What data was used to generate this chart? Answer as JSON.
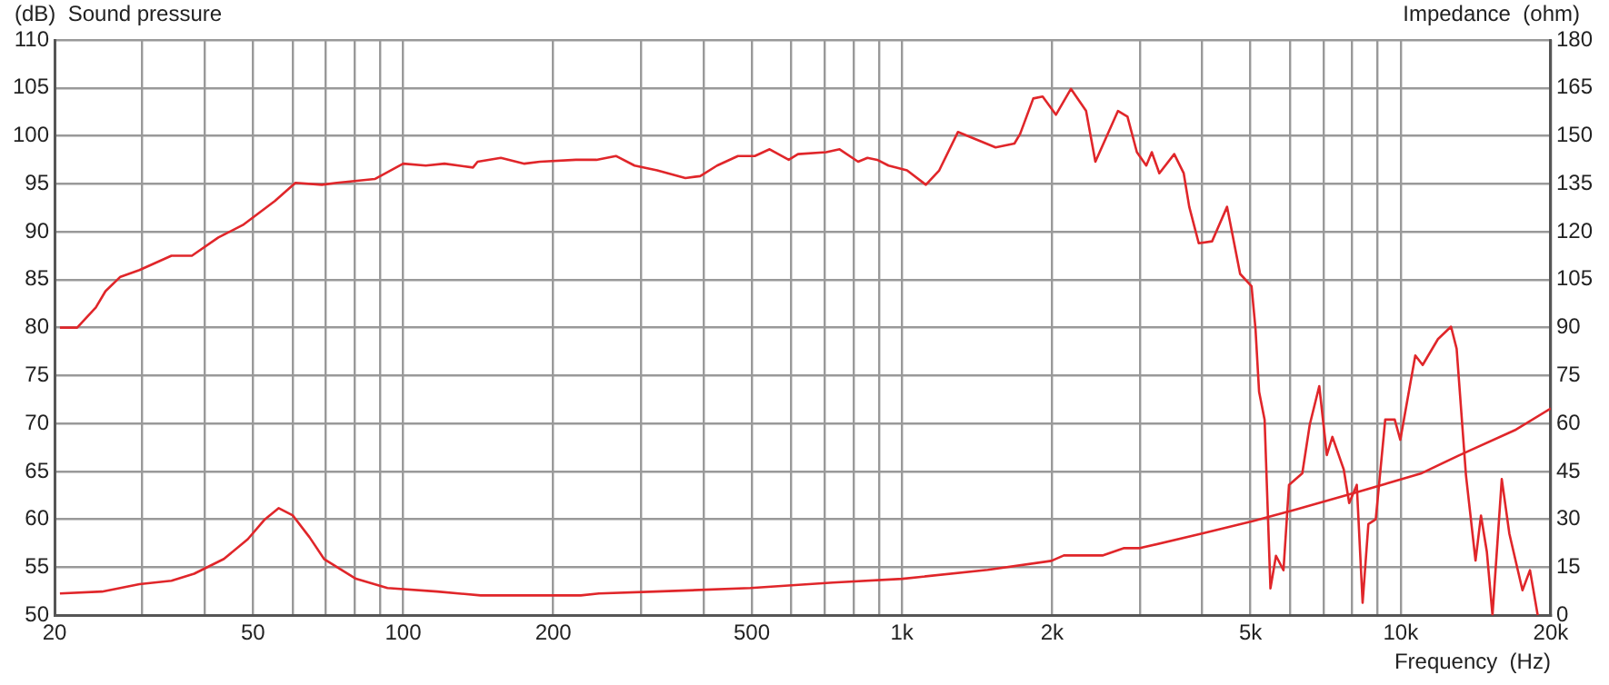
{
  "chart_data": {
    "type": "line",
    "xlabel": "Frequency  (Hz)",
    "ylabel": "(dB)  Sound pressure",
    "y2label": "Impedance  (ohm)",
    "log": "x",
    "grid": true,
    "marker": "none",
    "line_style": "solid",
    "xlim": [
      20,
      20000
    ],
    "xticks": [
      20,
      {
        "value": 30,
        "label": null
      },
      {
        "value": 40,
        "label": null
      },
      50,
      {
        "value": 60,
        "label": null
      },
      {
        "value": 70,
        "label": null
      },
      {
        "value": 80,
        "label": null
      },
      {
        "value": 90,
        "label": null
      },
      100,
      200,
      {
        "value": 300,
        "label": null
      },
      {
        "value": 400,
        "label": null
      },
      500,
      {
        "value": 600,
        "label": null
      },
      {
        "value": 700,
        "label": null
      },
      {
        "value": 800,
        "label": null
      },
      {
        "value": 900,
        "label": null
      },
      {
        "value": 1000,
        "label": "1k"
      },
      {
        "value": 2000,
        "label": "2k"
      },
      {
        "value": 3000,
        "label": null
      },
      {
        "value": 4000,
        "label": null
      },
      {
        "value": 5000,
        "label": "5k"
      },
      {
        "value": 6000,
        "label": null
      },
      {
        "value": 7000,
        "label": null
      },
      {
        "value": 8000,
        "label": null
      },
      {
        "value": 9000,
        "label": null
      },
      {
        "value": 10000,
        "label": "10k"
      },
      {
        "value": 20000,
        "label": "20k"
      }
    ],
    "ylim": [
      50,
      110
    ],
    "yticks": [
      50,
      55,
      60,
      65,
      70,
      75,
      80,
      85,
      90,
      95,
      100,
      105,
      110
    ],
    "y2lim": [
      0,
      180
    ],
    "y2ticks": [
      0,
      15,
      30,
      45,
      60,
      75,
      90,
      105,
      120,
      135,
      150,
      165,
      180
    ],
    "series": [
      {
        "color": "#e0262a",
        "x": [
          20.5,
          22.2,
          24.2,
          25.3,
          27.1,
          29.6,
          34.3,
          37.7,
          42.6,
          47.7,
          55.3,
          60.8,
          68.7,
          73.6,
          87.7,
          100,
          111,
          121,
          138,
          141,
          157,
          175,
          188,
          222,
          244,
          267,
          291,
          323,
          368,
          394,
          426,
          469,
          507,
          543,
          593,
          619,
          705,
          750,
          817,
          853,
          892,
          940,
          1024,
          1117,
          1188,
          1295,
          1413,
          1541,
          1681,
          1726,
          1834,
          1915,
          2036,
          2182,
          2340,
          2443,
          2712,
          2833,
          2959,
          3090,
          3170,
          3282,
          3516,
          3673,
          3768,
          3937,
          4187,
          4487,
          4766,
          5024,
          5116,
          5202,
          5336,
          5482,
          5624,
          5822,
          5973,
          6350,
          6574,
          6868,
          7112,
          7297,
          7690,
          7886,
          8167,
          8390,
          8616,
          8914,
          9313,
          9730,
          9985,
          10700,
          11070,
          11880,
          12620,
          12950,
          13520,
          14130,
          14490,
          14890,
          15280,
          15950,
          16520,
          17550,
          18170,
          18830
        ],
        "values": [
          80,
          80,
          82.1,
          83.8,
          85.3,
          86,
          87.5,
          87.5,
          89.4,
          90.7,
          93.2,
          95.1,
          94.9,
          95.1,
          95.5,
          97.1,
          96.9,
          97.1,
          96.7,
          97.3,
          97.7,
          97.1,
          97.3,
          97.5,
          97.5,
          97.9,
          96.9,
          96.4,
          95.6,
          95.8,
          96.9,
          97.9,
          97.9,
          98.6,
          97.5,
          98.1,
          98.3,
          98.6,
          97.3,
          97.7,
          97.5,
          96.9,
          96.4,
          94.9,
          96.4,
          100.4,
          99.6,
          98.8,
          99.2,
          100.2,
          103.9,
          104.1,
          102.2,
          104.9,
          102.6,
          97.3,
          102.6,
          102,
          98.3,
          96.9,
          98.3,
          96.1,
          98.1,
          96.1,
          92.6,
          88.8,
          89,
          92.6,
          85.6,
          84.3,
          79.9,
          73.3,
          70.4,
          52.8,
          56.2,
          54.7,
          63.6,
          64.8,
          69.9,
          73.9,
          66.7,
          68.6,
          65.2,
          61.7,
          63.6,
          51.3,
          59.5,
          60,
          70.4,
          70.4,
          68.3,
          77.1,
          76.1,
          78.8,
          80.1,
          77.8,
          64.6,
          55.7,
          60.4,
          56.6,
          50,
          64.2,
          58.5,
          52.6,
          54.7,
          50
        ]
      },
      {
        "color": "#e0262a",
        "axis": "y2",
        "x": [
          20.5,
          24.9,
          29.6,
          34.3,
          38.1,
          43.7,
          48.8,
          52.8,
          56.3,
          60.1,
          64.9,
          69.4,
          80.4,
          93,
          117,
          143,
          227,
          247,
          321,
          497,
          727,
          1002,
          1486,
          1993,
          2112,
          2524,
          2790,
          3000,
          3980,
          5063,
          6150,
          8205,
          10970,
          13080,
          16940,
          20000
        ],
        "values": [
          6.8,
          7.4,
          9.7,
          10.8,
          13,
          17.6,
          23.8,
          30,
          33.5,
          31.2,
          24.4,
          17.6,
          11.4,
          8.5,
          7.4,
          6.2,
          6.2,
          6.8,
          7.4,
          8.5,
          10.2,
          11.4,
          14.2,
          17,
          18.7,
          18.7,
          21,
          21,
          25.5,
          29.5,
          33,
          38.6,
          44.3,
          50,
          57.9,
          64.7
        ]
      }
    ]
  }
}
